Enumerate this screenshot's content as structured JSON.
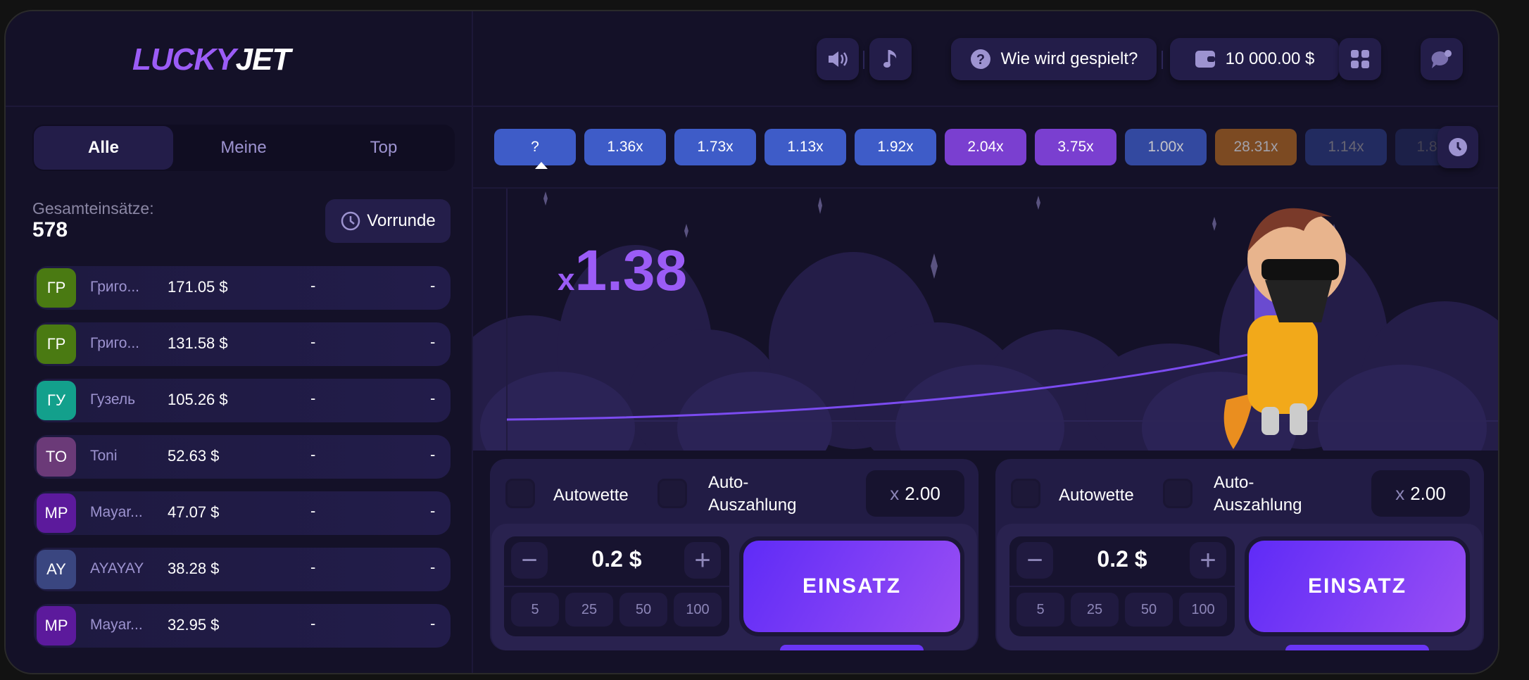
{
  "logo": {
    "part1": "LUCKY",
    "part2": "JET"
  },
  "tabs": [
    {
      "label": "Alle",
      "active": true
    },
    {
      "label": "Meine",
      "active": false
    },
    {
      "label": "Top",
      "active": false
    }
  ],
  "totals": {
    "label": "Gesamteinsätze:",
    "value": "578"
  },
  "previous_round": {
    "label": "Vorrunde",
    "icon": "clock-icon"
  },
  "bets": [
    {
      "initials": "ГР",
      "name": "Григо...",
      "amount": "171.05 $",
      "coef": "-",
      "win": "-",
      "color": "#4a7a12"
    },
    {
      "initials": "ГР",
      "name": "Григо...",
      "amount": "131.58 $",
      "coef": "-",
      "win": "-",
      "color": "#4a7a12"
    },
    {
      "initials": "ГУ",
      "name": "Гузель",
      "amount": "105.26 $",
      "coef": "-",
      "win": "-",
      "color": "#13a08c"
    },
    {
      "initials": "TO",
      "name": "Toni",
      "amount": "52.63 $",
      "coef": "-",
      "win": "-",
      "color": "#6b3a78"
    },
    {
      "initials": "MP",
      "name": "Mayar...",
      "amount": "47.07 $",
      "coef": "-",
      "win": "-",
      "color": "#5c1a9c"
    },
    {
      "initials": "AY",
      "name": "AYAYAY",
      "amount": "38.28 $",
      "coef": "-",
      "win": "-",
      "color": "#3a4680"
    },
    {
      "initials": "MP",
      "name": "Mayar...",
      "amount": "32.95 $",
      "coef": "-",
      "win": "-",
      "color": "#5c1a9c"
    }
  ],
  "header": {
    "help_label": "Wie wird gespielt?",
    "balance": "10 000.00 $"
  },
  "history": [
    {
      "label": "?",
      "color": "#3e5cc8"
    },
    {
      "label": "1.36x",
      "color": "#3e5cc8"
    },
    {
      "label": "1.73x",
      "color": "#3e5cc8"
    },
    {
      "label": "1.13x",
      "color": "#3e5cc8"
    },
    {
      "label": "1.92x",
      "color": "#3e5cc8"
    },
    {
      "label": "2.04x",
      "color": "#7a3fd0"
    },
    {
      "label": "3.75x",
      "color": "#7a3fd0"
    },
    {
      "label": "1.00x",
      "color": "#3e5cc8"
    },
    {
      "label": "28.31x",
      "color": "#c2711f"
    },
    {
      "label": "1.14x",
      "color": "#3e5cc8"
    },
    {
      "label": "1.8",
      "color": "#3e5cc8"
    }
  ],
  "game": {
    "multiplier_prefix": "x",
    "multiplier": "1.38"
  },
  "panels": [
    {
      "autobet": "Autowette",
      "autocash_1": "Auto-",
      "autocash_2": "Auszahlung",
      "cashout_prefix": "x",
      "cashout": "2.00",
      "stake": "0.2 $",
      "quick": [
        "5",
        "25",
        "50",
        "100"
      ],
      "bet_label": "EINSATZ"
    },
    {
      "autobet": "Autowette",
      "autocash_1": "Auto-",
      "autocash_2": "Auszahlung",
      "cashout_prefix": "x",
      "cashout": "2.00",
      "stake": "0.2 $",
      "quick": [
        "5",
        "25",
        "50",
        "100"
      ],
      "bet_label": "EINSATZ"
    }
  ],
  "colors": {
    "accent": "#9b5cf6",
    "background": "#141128"
  }
}
